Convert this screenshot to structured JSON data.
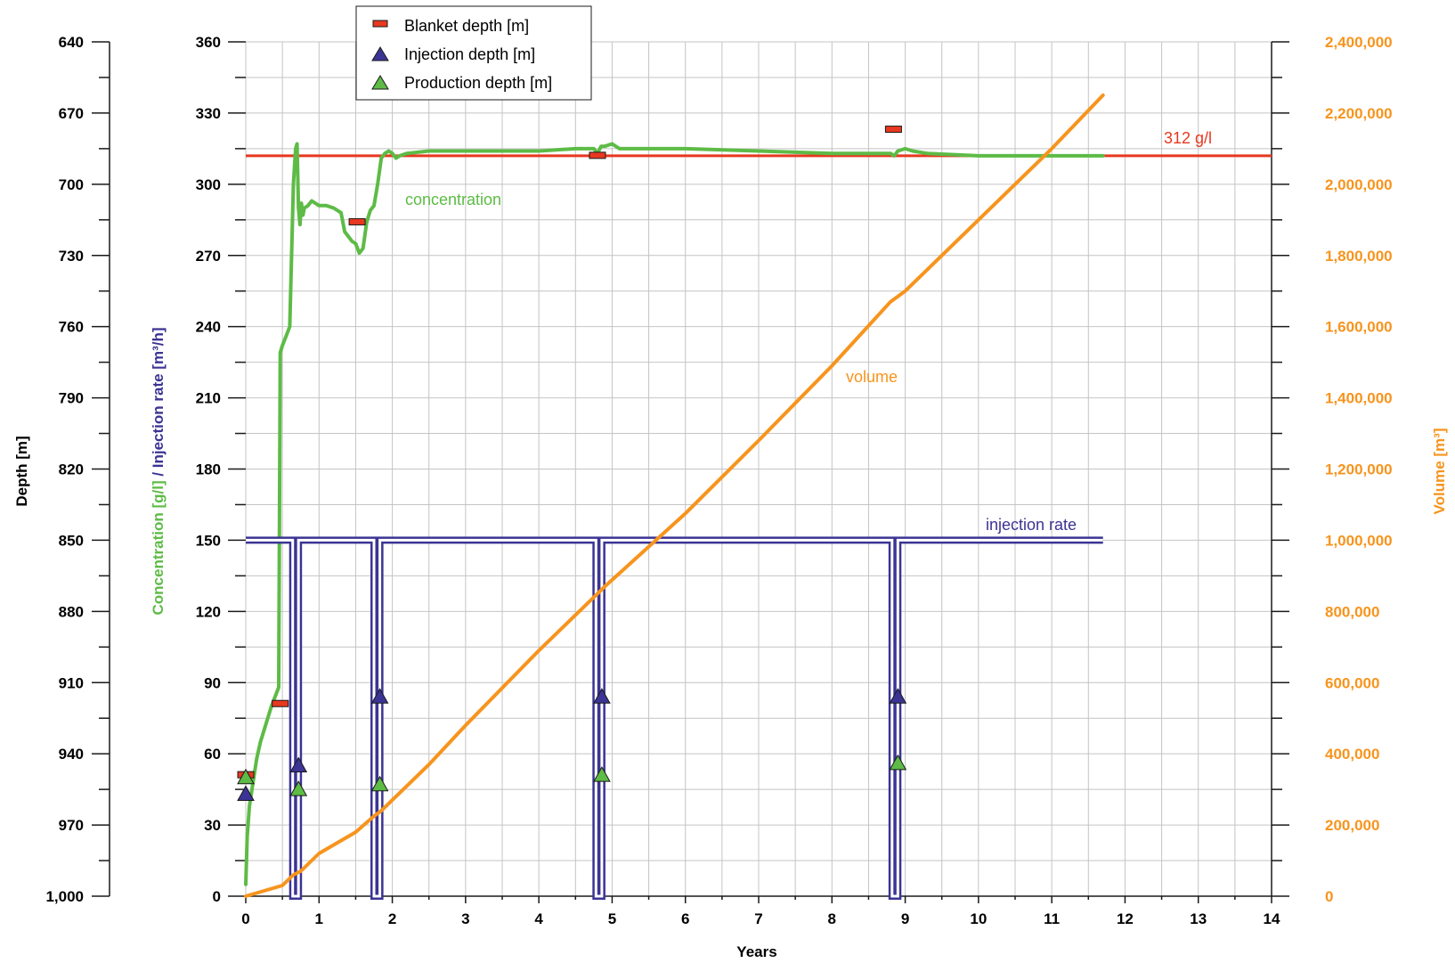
{
  "chart_data": {
    "type": "line",
    "xlabel": "Years",
    "xlim": [
      0,
      14
    ],
    "xticks": [
      "0",
      "1",
      "2",
      "3",
      "4",
      "5",
      "6",
      "7",
      "8",
      "9",
      "10",
      "11",
      "12",
      "13",
      "14"
    ],
    "axes": {
      "depth": {
        "label": "Depth [m]",
        "range": [
          1000,
          640
        ],
        "inverted": true,
        "ticks": [
          "640",
          "670",
          "700",
          "730",
          "760",
          "790",
          "820",
          "850",
          "880",
          "910",
          "940",
          "970",
          "1,000"
        ]
      },
      "concentration_rate": {
        "label_part1": "Concentration [g/l]",
        "label_sep": " / ",
        "label_part2": "Injection rate [m³/h]",
        "range": [
          0,
          360
        ],
        "ticks": [
          "360",
          "330",
          "300",
          "270",
          "240",
          "210",
          "180",
          "150",
          "120",
          "90",
          "60",
          "30",
          "0"
        ]
      },
      "volume": {
        "label": "Volume [m³]",
        "range": [
          0,
          2400000
        ],
        "ticks": [
          "2,400,000",
          "2,200,000",
          "2,000,000",
          "1,800,000",
          "1,600,000",
          "1,400,000",
          "1,200,000",
          "1,000,000",
          "800,000",
          "600,000",
          "400,000",
          "200,000",
          "0"
        ]
      }
    },
    "grid": true,
    "legend": {
      "placement": "top-left",
      "entries": [
        "Blanket depth [m]",
        "Injection depth [m]",
        "Production depth [m]"
      ]
    },
    "annotations": {
      "concentration": "concentration",
      "volume": "volume",
      "injection_rate": "injection rate",
      "reference": "312 g/l"
    },
    "reference_line": {
      "axis": "concentration_rate",
      "value": 312
    },
    "series": [
      {
        "name": "concentration",
        "axis": "concentration_rate",
        "x": [
          0,
          0.02,
          0.05,
          0.1,
          0.15,
          0.2,
          0.25,
          0.3,
          0.35,
          0.4,
          0.45,
          0.47,
          0.5,
          0.55,
          0.6,
          0.65,
          0.68,
          0.7,
          0.72,
          0.74,
          0.76,
          0.78,
          0.8,
          0.85,
          0.9,
          1.0,
          1.1,
          1.2,
          1.3,
          1.35,
          1.4,
          1.45,
          1.5,
          1.55,
          1.6,
          1.65,
          1.7,
          1.75,
          1.8,
          1.85,
          1.9,
          1.95,
          2.0,
          2.05,
          2.1,
          2.2,
          2.5,
          3,
          3.5,
          4,
          4.5,
          4.75,
          4.8,
          4.85,
          4.9,
          5.0,
          5.1,
          5.2,
          5.5,
          6,
          7,
          8,
          8.8,
          8.85,
          8.9,
          9.0,
          9.1,
          9.3,
          10,
          11,
          11.7
        ],
        "y": [
          5,
          25,
          38,
          48,
          58,
          65,
          70,
          75,
          80,
          84,
          88,
          229,
          232,
          236,
          240,
          300,
          315,
          317,
          290,
          283,
          292,
          287,
          290,
          291,
          293,
          291,
          291,
          290,
          288,
          280,
          278,
          276,
          275,
          271,
          273,
          284,
          289,
          291,
          300,
          311,
          313,
          314,
          313,
          311,
          312,
          313,
          314,
          314,
          314,
          314,
          315,
          315,
          313,
          316,
          316,
          317,
          315,
          315,
          315,
          315,
          314,
          313,
          313,
          312,
          314,
          315,
          314,
          313,
          312,
          312,
          312
        ]
      },
      {
        "name": "injection rate",
        "axis": "concentration_rate",
        "x": [
          0,
          0.64,
          0.64,
          0.72,
          0.72,
          1.75,
          1.75,
          1.83,
          1.83,
          4.78,
          4.78,
          4.86,
          4.86,
          8.82,
          8.82,
          8.9,
          8.9,
          11.7
        ],
        "y": [
          150,
          150,
          0,
          0,
          150,
          150,
          0,
          0,
          150,
          150,
          0,
          0,
          150,
          150,
          0,
          0,
          150,
          150
        ]
      },
      {
        "name": "volume",
        "axis": "volume",
        "x": [
          0,
          0.5,
          0.65,
          0.75,
          1.0,
          1.5,
          1.75,
          1.85,
          2.5,
          3.0,
          4.0,
          4.75,
          4.9,
          6.0,
          7.0,
          8.0,
          8.8,
          9.0,
          10.0,
          11.0,
          11.7
        ],
        "y": [
          0,
          30000,
          60000,
          70000,
          120000,
          180000,
          225000,
          240000,
          370000,
          480000,
          690000,
          840000,
          870000,
          1075000,
          1280000,
          1490000,
          1670000,
          1700000,
          1900000,
          2100000,
          2250000
        ]
      }
    ],
    "markers": [
      {
        "name": "Blanket depth [m]",
        "axis": "depth",
        "shape": "dash",
        "points": [
          [
            0,
            949
          ],
          [
            0.47,
            919
          ],
          [
            1.52,
            716
          ],
          [
            4.8,
            688
          ],
          [
            8.84,
            677
          ]
        ]
      },
      {
        "name": "Injection depth [m]",
        "axis": "depth",
        "shape": "triangle",
        "points": [
          [
            0,
            957
          ],
          [
            0.72,
            945
          ],
          [
            1.83,
            916
          ],
          [
            4.86,
            916
          ],
          [
            8.9,
            916
          ]
        ]
      },
      {
        "name": "Production depth [m]",
        "axis": "depth",
        "shape": "triangle",
        "points": [
          [
            0,
            950
          ],
          [
            0.72,
            955
          ],
          [
            1.83,
            953
          ],
          [
            4.86,
            949
          ],
          [
            8.9,
            944
          ]
        ]
      }
    ],
    "colors": {
      "concentration": "#5dbb46",
      "injection_rate": "#3b3494",
      "volume": "#f7941d",
      "reference": "#e8381f",
      "blanket": "#e8381f",
      "injection_marker": "#3b3494",
      "production_marker": "#5dbb46",
      "grid": "#c4c4c4",
      "axis": "#1a1a1a"
    }
  }
}
